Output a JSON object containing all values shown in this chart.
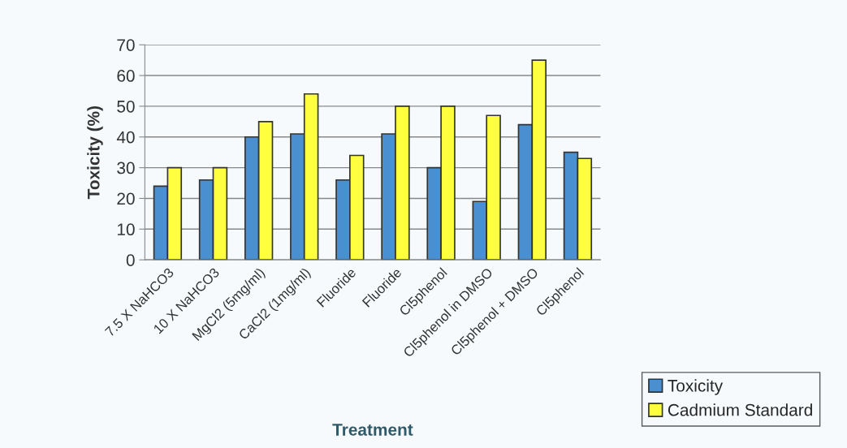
{
  "chart_data": {
    "type": "bar",
    "xlabel": "Treatment",
    "ylabel": "Toxicity (%)",
    "categories": [
      "7.5 X NaHCO3",
      "10 X NaHCO3",
      "MgCl2 (5mg/ml)",
      "CaCl2 (1mg/ml)",
      "Fluoride",
      "Fluoride",
      "Cl5phenol",
      "Cl5phenol in DMSO",
      "Cl5phenol + DMSO",
      "Cl5phenol"
    ],
    "series": [
      {
        "name": "Toxicity",
        "color": "#4a8fd0",
        "values": [
          24,
          26,
          40,
          41,
          26,
          41,
          30,
          19,
          44,
          35
        ]
      },
      {
        "name": "Cadmium Standard",
        "color": "#ffff40",
        "values": [
          30,
          30,
          45,
          54,
          34,
          50,
          50,
          47,
          65,
          33
        ]
      }
    ],
    "ylim": [
      0,
      70
    ],
    "yticks": [
      0,
      10,
      20,
      30,
      40,
      50,
      60,
      70
    ],
    "grid": "y",
    "legend": "bottom right"
  }
}
